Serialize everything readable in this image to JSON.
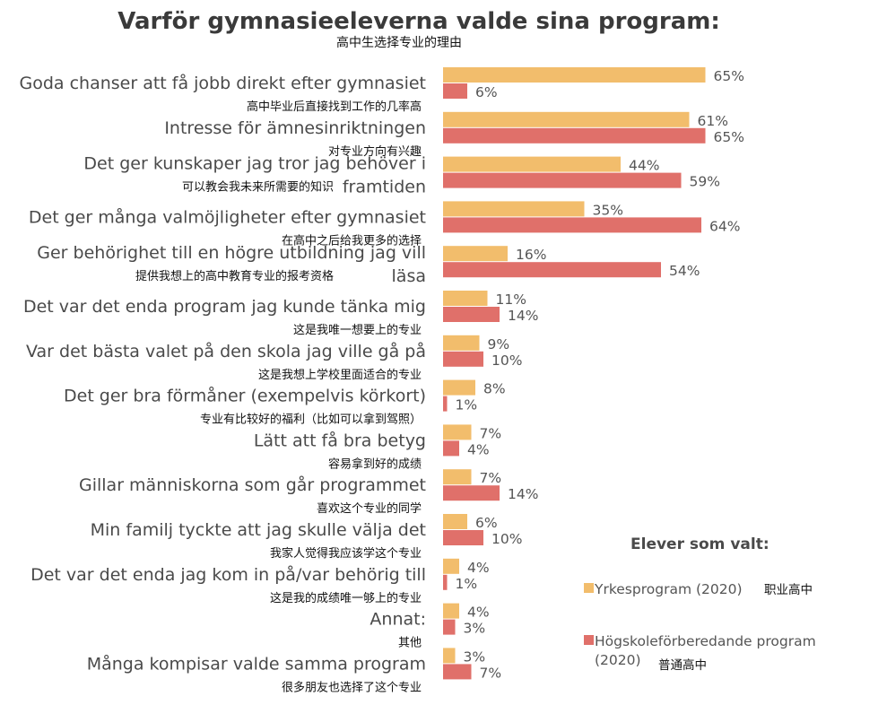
{
  "chart_data": {
    "type": "bar",
    "orientation": "horizontal",
    "title": "Varför gymnasieeleverna valde sina program:",
    "subtitle": "高中生选择专业的理由",
    "categories": [
      {
        "sv": [
          "Goda chanser att få jobb direkt efter gymnasiet"
        ],
        "zh": "高中毕业后直接找到工作的几率高"
      },
      {
        "sv": [
          "Intresse för ämnesinriktningen"
        ],
        "zh": "对专业方向有兴趣"
      },
      {
        "sv": [
          "Det ger kunskaper jag tror jag behöver i",
          "framtiden"
        ],
        "zh": "可以教会我未来所需要的知识"
      },
      {
        "sv": [
          "Det ger många valmöjligheter efter gymnasiet"
        ],
        "zh": "在高中之后给我更多的选择"
      },
      {
        "sv": [
          "Ger behörighet till en högre utbildning jag vill",
          "läsa"
        ],
        "zh": "提供我想上的高中教育专业的报考资格"
      },
      {
        "sv": [
          "Det var det enda program jag kunde tänka mig"
        ],
        "zh": "这是我唯一想要上的专业"
      },
      {
        "sv": [
          "Var det bästa valet på den skola jag ville gå på"
        ],
        "zh": "这是我想上学校里面适合的专业"
      },
      {
        "sv": [
          "Det ger bra förmåner (exempelvis körkort)"
        ],
        "zh": "专业有比较好的福利（比如可以拿到驾照）"
      },
      {
        "sv": [
          "Lätt att få bra betyg"
        ],
        "zh": "容易拿到好的成绩"
      },
      {
        "sv": [
          "Gillar människorna som går programmet"
        ],
        "zh": "喜欢这个专业的同学"
      },
      {
        "sv": [
          "Min familj tyckte att jag skulle välja det"
        ],
        "zh": "我家人觉得我应该学这个专业"
      },
      {
        "sv": [
          "Det var det enda jag kom in på/var behörig till"
        ],
        "zh": "这是我的成绩唯一够上的专业"
      },
      {
        "sv": [
          "Annat:"
        ],
        "zh": "其他"
      },
      {
        "sv": [
          "Många kompisar valde samma program"
        ],
        "zh": "很多朋友也选择了这个专业"
      }
    ],
    "series": [
      {
        "name": "Yrkesprogram (2020)",
        "name_zh": "职业高中",
        "color": "#F2BD6C",
        "values": [
          65,
          61,
          44,
          35,
          16,
          11,
          9,
          8,
          7,
          7,
          6,
          4,
          4,
          3
        ]
      },
      {
        "name": "Högskoleförberedande program (2020)",
        "name_zh": "普通高中",
        "color": "#E0706A",
        "values": [
          6,
          65,
          59,
          64,
          54,
          14,
          10,
          1,
          4,
          14,
          10,
          1,
          3,
          7
        ]
      }
    ],
    "value_suffix": "%",
    "legend": {
      "title": "Elever som valt:",
      "position": "bottom-right"
    },
    "xlim": [
      0,
      100
    ]
  }
}
